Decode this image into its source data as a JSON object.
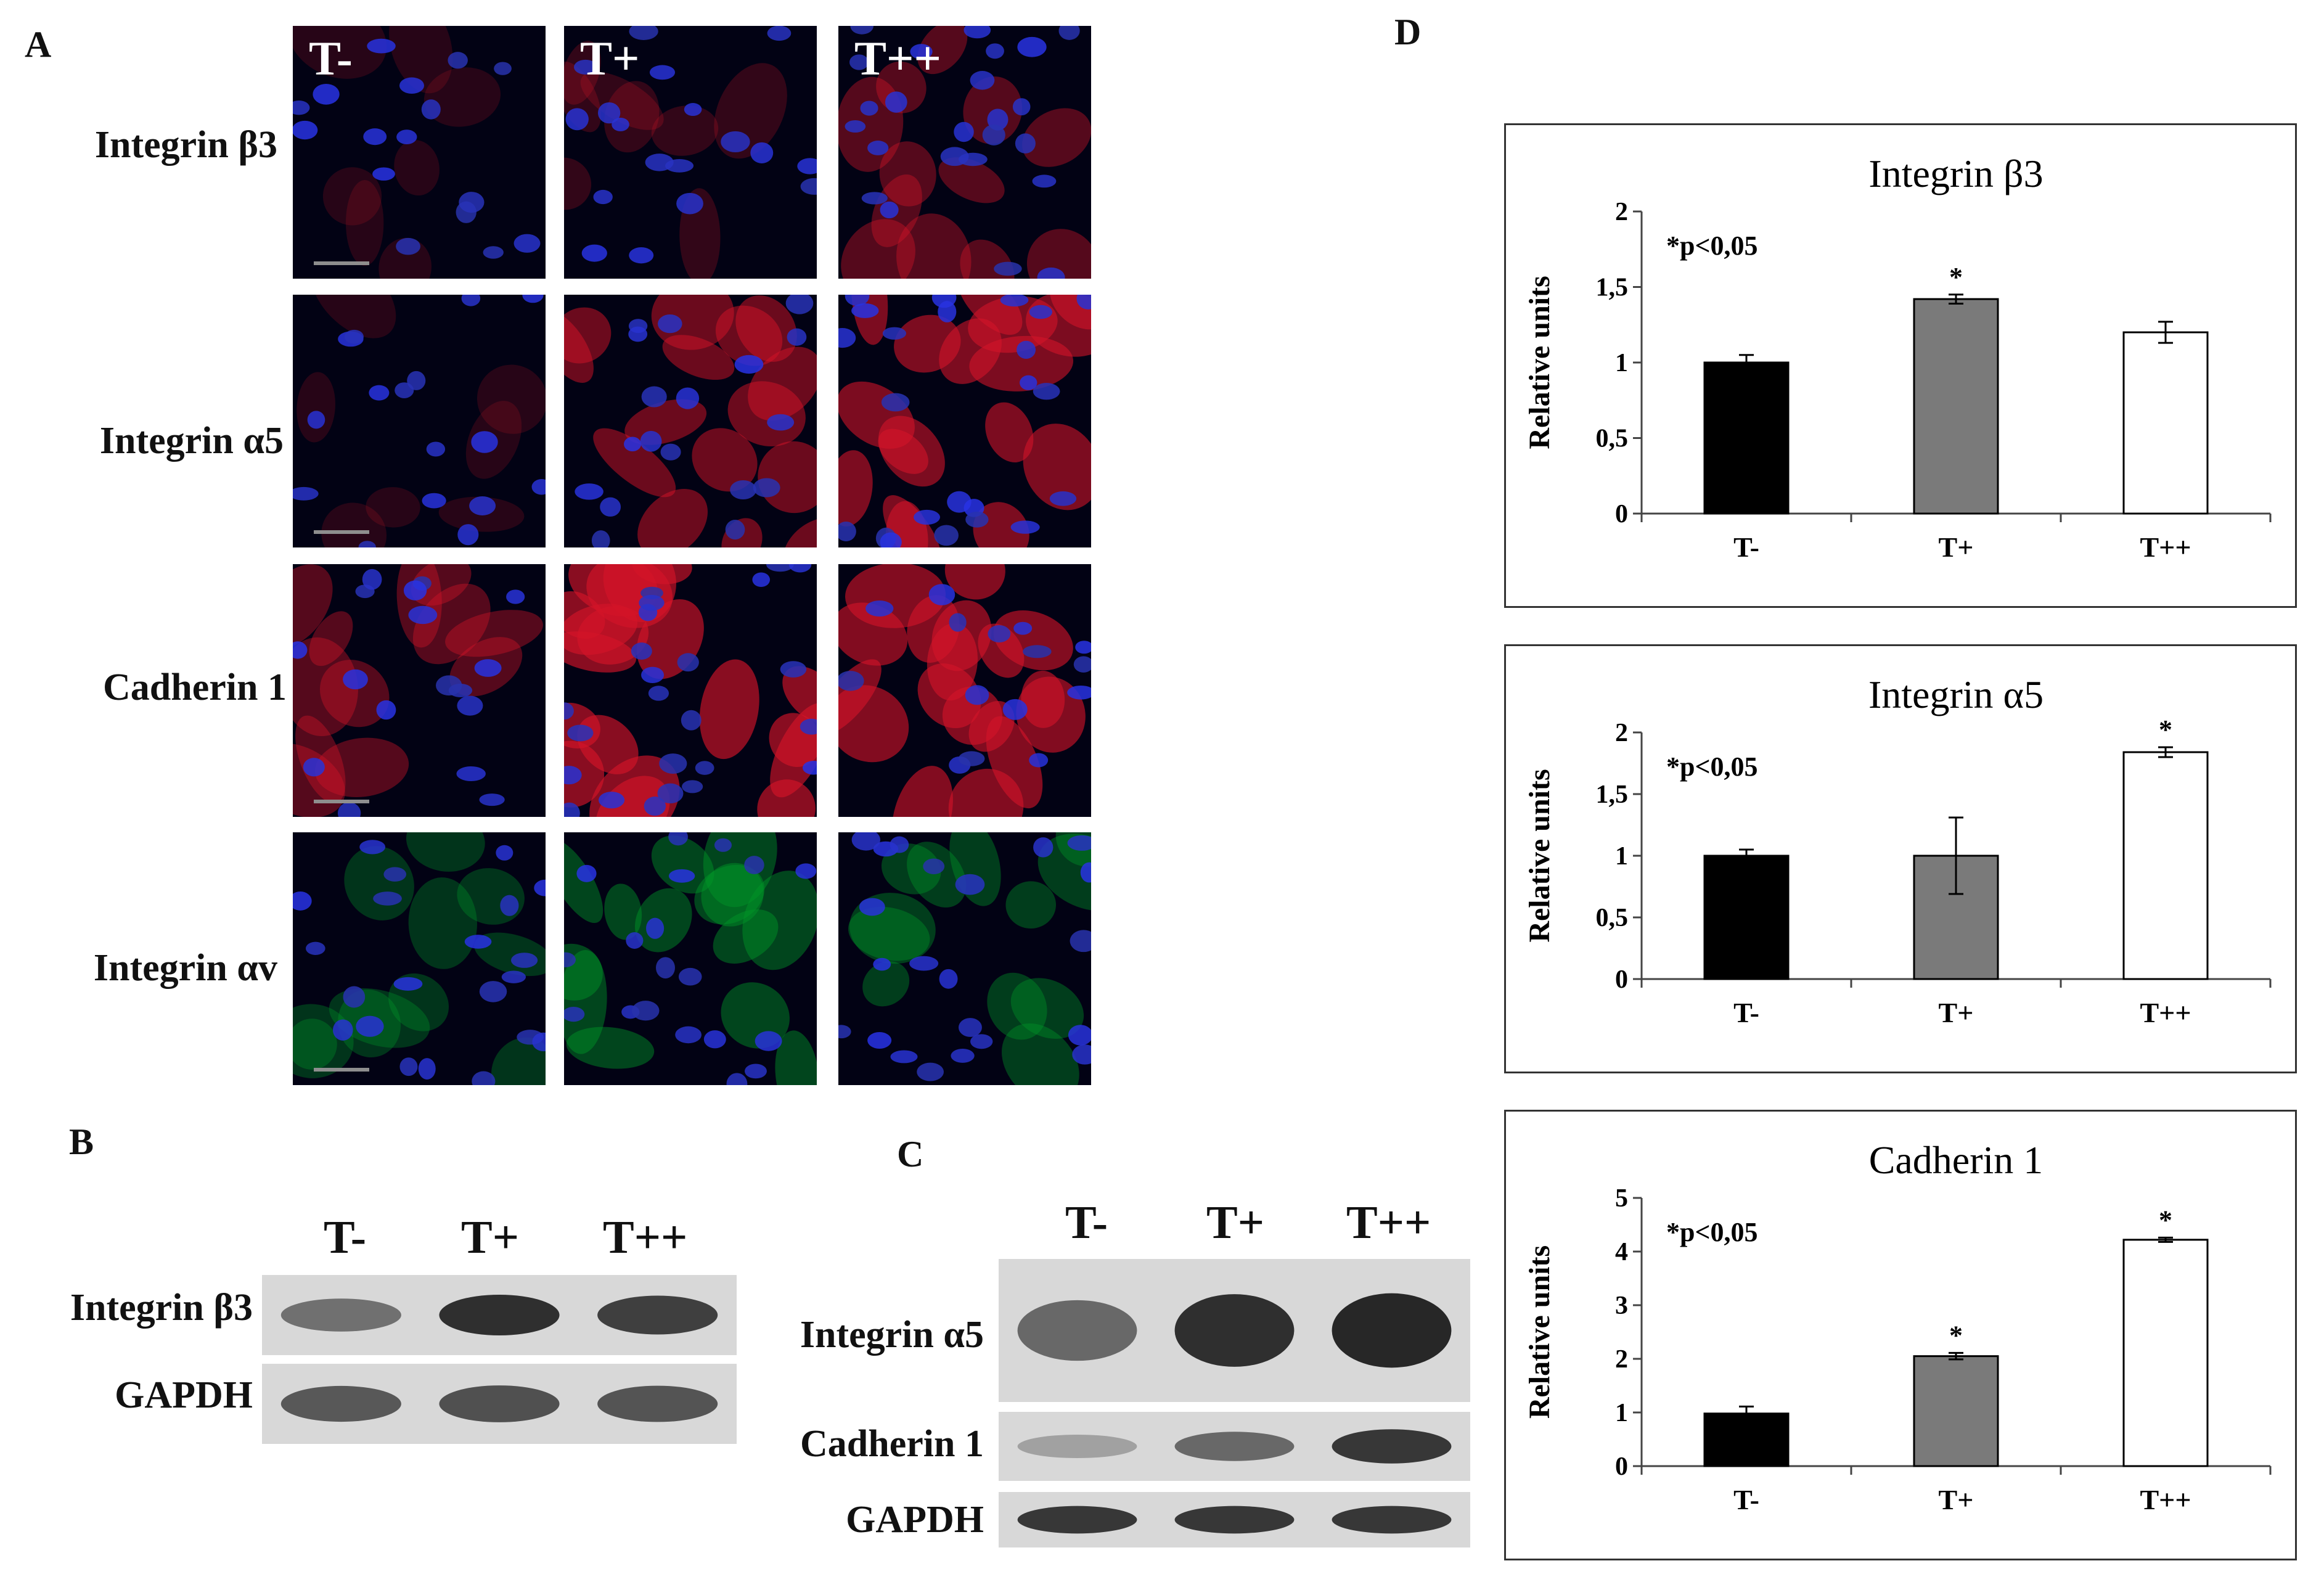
{
  "panels": {
    "a": "A",
    "b": "B",
    "c": "C",
    "d": "D"
  },
  "panel_a": {
    "columns": [
      "T-",
      "T+",
      "T++"
    ],
    "rows": [
      {
        "label": "Integrin β3",
        "stain": "red",
        "intensity": [
          0.05,
          0.15,
          0.45
        ]
      },
      {
        "label": "Integrin α5",
        "stain": "red",
        "intensity": [
          0.05,
          0.65,
          0.8
        ]
      },
      {
        "label": "Cadherin 1",
        "stain": "red",
        "intensity": [
          0.45,
          0.9,
          0.85
        ]
      },
      {
        "label": "Integrin αv",
        "stain": "green",
        "intensity": [
          0.35,
          0.55,
          0.45
        ]
      }
    ]
  },
  "panel_b": {
    "lanes": [
      "T-",
      "T+",
      "T++"
    ],
    "rows": [
      {
        "label": "Integrin β3",
        "band_intensity": [
          0.55,
          0.95,
          0.85
        ]
      },
      {
        "label": "GAPDH",
        "band_intensity": [
          0.7,
          0.75,
          0.72
        ]
      }
    ]
  },
  "panel_c": {
    "lanes": [
      "T-",
      "T+",
      "T++"
    ],
    "rows": [
      {
        "label": "Integrin α5",
        "band_intensity": [
          0.6,
          0.95,
          1.0
        ]
      },
      {
        "label": "Cadherin 1",
        "band_intensity": [
          0.25,
          0.6,
          0.9
        ]
      },
      {
        "label": "GAPDH",
        "band_intensity": [
          0.9,
          0.9,
          0.9
        ]
      }
    ]
  },
  "chart_data": [
    {
      "type": "bar",
      "title": "Integrin β3",
      "ylabel": "Relative units",
      "annotation": "*p<0,05",
      "categories": [
        "T-",
        "T+",
        "T++"
      ],
      "values": [
        1.0,
        1.42,
        1.2
      ],
      "errors": [
        0.05,
        0.03,
        0.07
      ],
      "significant": [
        false,
        true,
        false
      ],
      "ylim": [
        0,
        2
      ],
      "yticks": [
        "0",
        "0,5",
        "1",
        "1,5",
        "2"
      ],
      "yticks_values": [
        0,
        0.5,
        1,
        1.5,
        2
      ],
      "bar_colors": [
        "#000000",
        "#7a7a7a",
        "#ffffff"
      ]
    },
    {
      "type": "bar",
      "title": "Integrin α5",
      "ylabel": "Relative units",
      "annotation": "*p<0,05",
      "categories": [
        "T-",
        "T+",
        "T++"
      ],
      "values": [
        1.0,
        1.0,
        1.84
      ],
      "errors": [
        0.05,
        0.31,
        0.04
      ],
      "significant": [
        false,
        false,
        true
      ],
      "ylim": [
        0,
        2
      ],
      "yticks": [
        "0",
        "0,5",
        "1",
        "1,5",
        "2"
      ],
      "yticks_values": [
        0,
        0.5,
        1,
        1.5,
        2
      ],
      "bar_colors": [
        "#000000",
        "#7a7a7a",
        "#ffffff"
      ]
    },
    {
      "type": "bar",
      "title": "Cadherin 1",
      "ylabel": "Relative units",
      "annotation": "*p<0,05",
      "categories": [
        "T-",
        "T+",
        "T++"
      ],
      "values": [
        0.98,
        2.05,
        4.22
      ],
      "errors": [
        0.13,
        0.06,
        0.04
      ],
      "significant": [
        false,
        true,
        true
      ],
      "ylim": [
        0,
        5
      ],
      "yticks": [
        "0",
        "1",
        "2",
        "3",
        "4",
        "5"
      ],
      "yticks_values": [
        0,
        1,
        2,
        3,
        4,
        5
      ],
      "bar_colors": [
        "#000000",
        "#7a7a7a",
        "#ffffff"
      ]
    }
  ]
}
